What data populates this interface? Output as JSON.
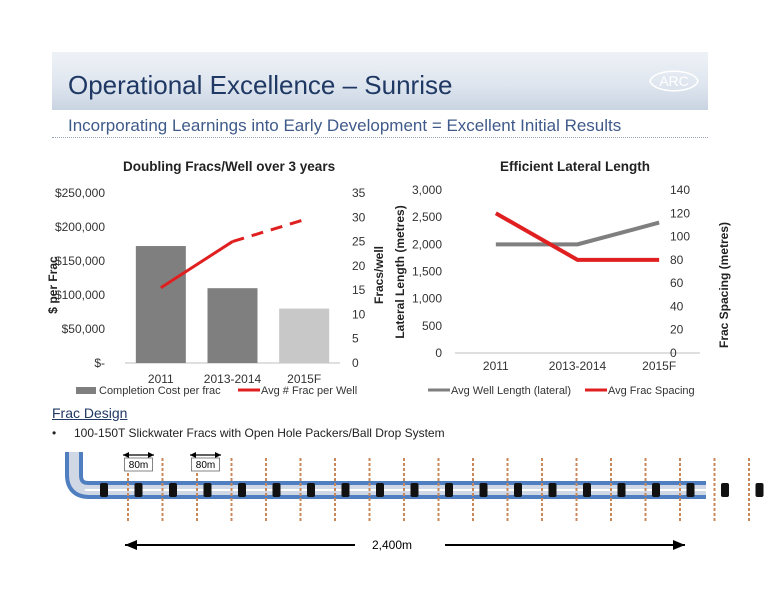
{
  "slide": {
    "title": "Operational Excellence – Sunrise",
    "subtitle": "Incorporating Learnings into Early Development = Excellent Initial Results",
    "logo_text": "ARC",
    "accent": "#1f3864",
    "section_heading": "Frac Design",
    "bullet_marker": "•",
    "bullet_text": "100-150T Slickwater Fracs with Open Hole Packers/Ball Drop System"
  },
  "chart_data": [
    {
      "type": "bar",
      "title": "Doubling Fracs/Well over 3 years",
      "categories": [
        "2011",
        "2013-2014",
        "2015F"
      ],
      "ylabel": "$ per Frac",
      "y2label": "Fracs/well",
      "ylim": [
        0,
        250000
      ],
      "y2lim": [
        0,
        35
      ],
      "yticks": [
        "$-",
        "$50,000",
        "$100,000",
        "$150,000",
        "$200,000",
        "$250,000"
      ],
      "y2ticks": [
        "0",
        "5",
        "10",
        "15",
        "20",
        "25",
        "30",
        "35"
      ],
      "series": [
        {
          "name": "Completion Cost per frac",
          "type": "bar",
          "axis": "left",
          "values": [
            172000,
            110000,
            80000
          ],
          "colors": [
            "#7f7f7f",
            "#7f7f7f",
            "#c8c8c8"
          ]
        },
        {
          "name": "Avg # Frac per Well",
          "type": "line",
          "axis": "right",
          "values": [
            15.5,
            25,
            29.5
          ],
          "color": "#e02020",
          "dashed_last_segment": true
        }
      ],
      "legend_position": "bottom",
      "grid": false
    },
    {
      "type": "line",
      "title": "Efficient Lateral Length",
      "categories": [
        "2011",
        "2013-2014",
        "2015F"
      ],
      "ylabel": "Lateral Length (metres)",
      "y2label": "Frac Spacing (metres)",
      "ylim": [
        0,
        3000
      ],
      "y2lim": [
        0,
        140
      ],
      "yticks": [
        "0",
        "500",
        "1,000",
        "1,500",
        "2,000",
        "2,500",
        "3,000"
      ],
      "y2ticks": [
        "0",
        "20",
        "40",
        "60",
        "80",
        "100",
        "120",
        "140"
      ],
      "series": [
        {
          "name": "Avg Well Length (lateral)",
          "axis": "left",
          "values": [
            2000,
            2000,
            2400
          ],
          "color": "#7f7f7f"
        },
        {
          "name": "Avg Frac Spacing",
          "axis": "right",
          "values": [
            120,
            80,
            80
          ],
          "color": "#e02020"
        }
      ],
      "legend_position": "bottom",
      "grid": false
    }
  ],
  "frac_design": {
    "spacing_labels": [
      "80m",
      "80m"
    ],
    "length_label": "2,400m",
    "frac_count": 20,
    "colors": {
      "casing_outer": "#4f7fc0",
      "casing_inner": "#cfd8e4",
      "packer": "#111111",
      "frac": "#c8885a",
      "arrow": "#000000"
    }
  }
}
